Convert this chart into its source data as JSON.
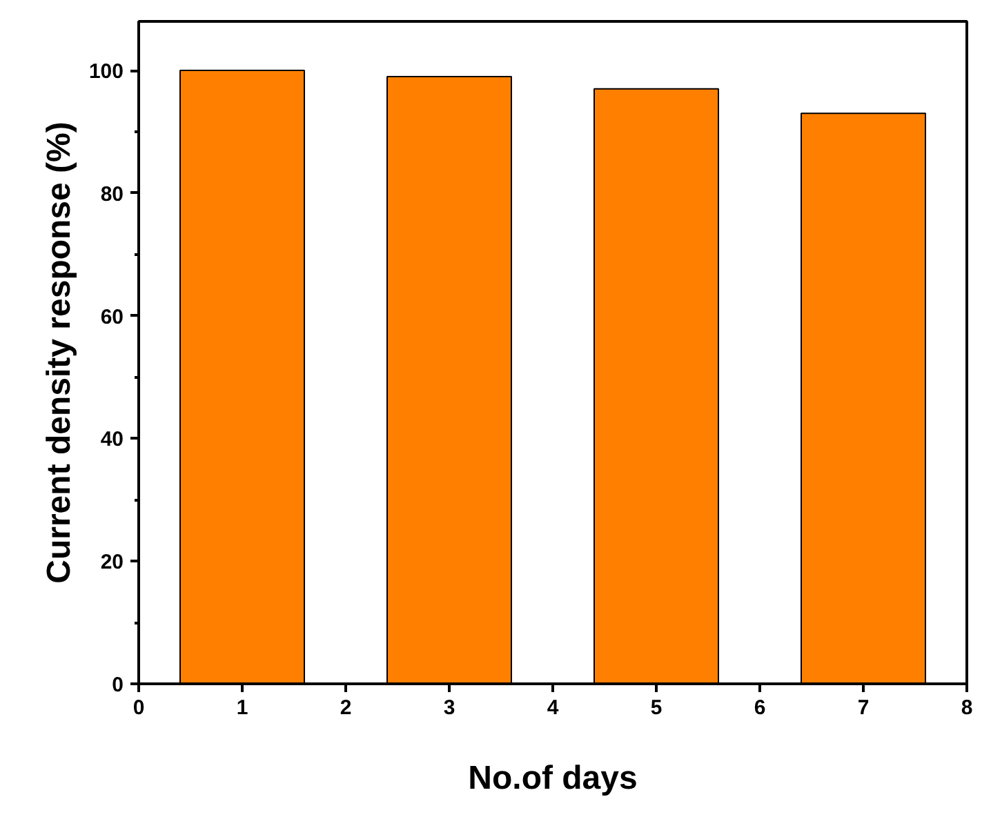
{
  "chart_data": {
    "type": "bar",
    "xlabel": "No.of days",
    "ylabel": "Current density response (%)",
    "x": [
      1,
      3,
      5,
      7
    ],
    "values": [
      100,
      99,
      97,
      93
    ],
    "color": "#ff8000",
    "xlim": [
      0,
      8
    ],
    "xticks": [
      0,
      1,
      2,
      3,
      4,
      5,
      6,
      7,
      8
    ],
    "ylim": [
      0,
      108
    ],
    "yticks": [
      0,
      20,
      40,
      60,
      80,
      100
    ],
    "grid": false
  }
}
